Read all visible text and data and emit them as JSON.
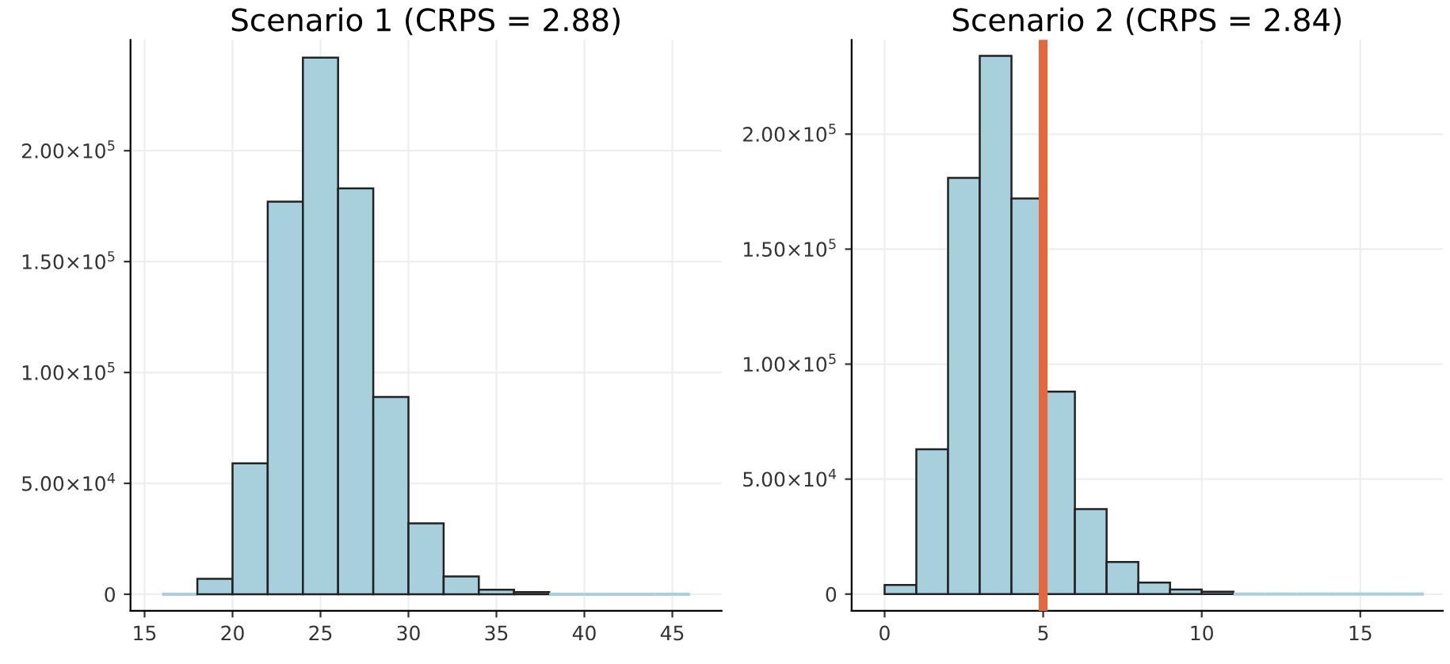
{
  "chart_data": [
    {
      "type": "histogram",
      "title": "Scenario 1 (CRPS = 2.88)",
      "bins": [
        16,
        18,
        20,
        22,
        24,
        26,
        28,
        30,
        32,
        34,
        36,
        38,
        40,
        42,
        44,
        46
      ],
      "values": [
        0,
        7000,
        59000,
        177000,
        242000,
        183000,
        89000,
        32000,
        8000,
        2000,
        1000,
        0,
        0,
        0,
        0
      ],
      "color": "#a8d0dc",
      "xlim": [
        14.2,
        47.8
      ],
      "ylim": [
        -7500,
        250000
      ],
      "xticks": [
        15,
        20,
        25,
        30,
        35,
        40,
        45
      ],
      "yticks": [
        {
          "value": 0,
          "label": "0"
        },
        {
          "value": 50000,
          "label": "5.00×10$^{4}$"
        },
        {
          "value": 100000,
          "label": "1.00×10$^{5}$"
        },
        {
          "value": 150000,
          "label": "1.50×10$^{5}$"
        },
        {
          "value": 200000,
          "label": "2.00×10$^{5}$"
        }
      ],
      "grid": true
    },
    {
      "type": "histogram",
      "title": "Scenario 2 (CRPS = 2.84)",
      "bins": [
        0,
        1,
        2,
        3,
        4,
        5,
        6,
        7,
        8,
        9,
        10,
        11,
        12,
        13,
        14,
        15,
        16,
        17
      ],
      "values": [
        4000,
        63000,
        181000,
        234000,
        172000,
        88000,
        37000,
        14000,
        5000,
        2000,
        1000,
        0,
        0,
        0,
        0,
        0,
        0
      ],
      "color": "#a8d0dc",
      "xlim": [
        -1.04,
        17.6
      ],
      "ylim": [
        -7300,
        241000
      ],
      "xticks": [
        0,
        5,
        10,
        15
      ],
      "yticks": [
        {
          "value": 0,
          "label": "0"
        },
        {
          "value": 50000,
          "label": "5.00×10$^{4}$"
        },
        {
          "value": 100000,
          "label": "1.00×10$^{5}$"
        },
        {
          "value": 150000,
          "label": "1.50×10$^{5}$"
        },
        {
          "value": 200000,
          "label": "2.00×10$^{5}$"
        }
      ],
      "grid": true,
      "ref_lines": [
        {
          "axis": "x",
          "value": 5,
          "color": "#e3683f"
        }
      ]
    }
  ]
}
